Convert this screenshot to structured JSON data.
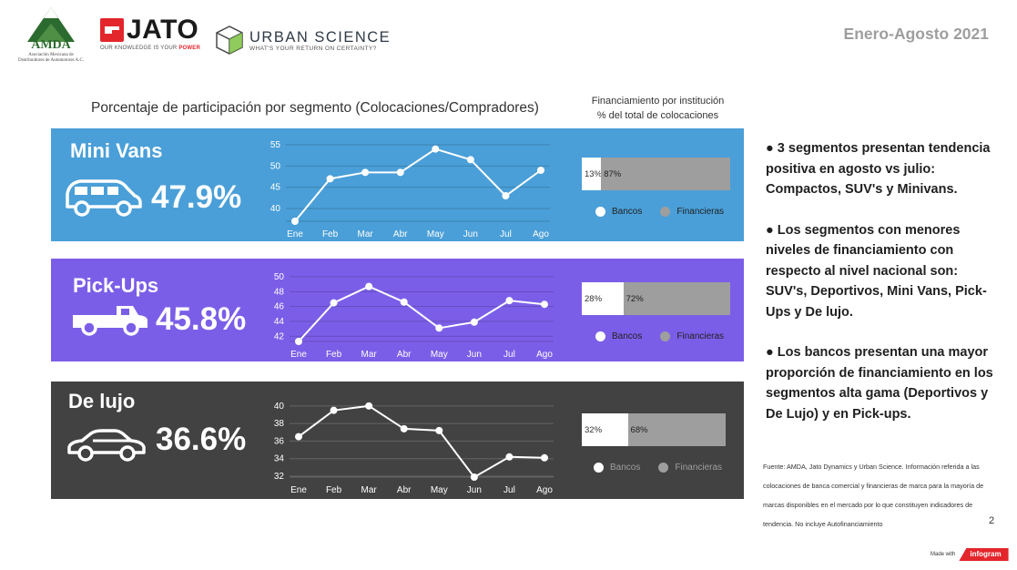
{
  "header": {
    "amda_name": "AMDA",
    "amda_subtitle_1": "Asociación Mexicana de",
    "amda_subtitle_2": "Distribuidores de Automotores A.C.",
    "jato_name": "JATO",
    "jato_tagline_prefix": "OUR KNOWLEDGE IS YOUR ",
    "jato_tagline_power": "POWER",
    "urban_science_name": "URBAN SCIENCE",
    "urban_science_tagline": "WHAT'S YOUR RETURN ON CERTAINTY?",
    "period": "Enero-Agosto  2021"
  },
  "titles": {
    "chart_title": "Porcentaje de participación por segmento (Colocaciones/Compradores)",
    "financing_title_1": "Financiamiento por institución",
    "financing_title_2": "% del total de colocaciones"
  },
  "colors": {
    "mini_vans_bg": "#4a9fd8",
    "pick_ups_bg": "#7b5ee8",
    "de_lujo_bg": "#424242",
    "banks": "#ffffff",
    "financieras": "#9e9e9e"
  },
  "segments": [
    {
      "name": "Mini Vans",
      "share": "47.9%",
      "icon": "minivan-icon",
      "banks_pct": "13%",
      "financieras_pct": "87%",
      "banks_value": 13,
      "financieras_value": 87
    },
    {
      "name": "Pick-Ups",
      "share": "45.8%",
      "icon": "pickup-truck-icon",
      "banks_pct": "28%",
      "financieras_pct": "72%",
      "banks_value": 28,
      "financieras_value": 72
    },
    {
      "name": "De lujo",
      "share": "36.6%",
      "icon": "luxury-car-icon",
      "banks_pct": "32%",
      "financieras_pct": "68%",
      "banks_value": 32,
      "financieras_value": 68
    }
  ],
  "legend": {
    "banks": "Bancos",
    "financieras": "Financieras"
  },
  "chart_data": [
    {
      "type": "line",
      "categories": [
        "Ene",
        "Feb",
        "Mar",
        "Abr",
        "May",
        "Jun",
        "Jul",
        "Ago"
      ],
      "values": [
        37.0,
        47.0,
        48.5,
        48.5,
        54.0,
        51.5,
        43.0,
        49.0
      ],
      "yticks": [
        40,
        45,
        50,
        55
      ],
      "ylim": [
        37,
        55
      ]
    },
    {
      "type": "line",
      "categories": [
        "Ene",
        "Feb",
        "Mar",
        "Abr",
        "May",
        "Jun",
        "Jul",
        "Ago"
      ],
      "values": [
        41.3,
        46.5,
        48.7,
        46.6,
        43.1,
        43.9,
        46.8,
        46.3
      ],
      "yticks": [
        42,
        44,
        46,
        48,
        50
      ],
      "ylim": [
        41.3,
        50
      ]
    },
    {
      "type": "line",
      "categories": [
        "Ene",
        "Feb",
        "Mar",
        "Abr",
        "May",
        "Jun",
        "Jul",
        "Ago"
      ],
      "values": [
        36.5,
        39.5,
        40.0,
        37.4,
        37.2,
        31.9,
        34.2,
        34.1
      ],
      "yticks": [
        32,
        34,
        36,
        38,
        40
      ],
      "ylim": [
        31.9,
        40.5
      ]
    }
  ],
  "bullets": [
    "● 3 segmentos presentan tendencia positiva en agosto vs julio: Compactos, SUV's y Minivans.",
    "● Los segmentos con menores niveles de financiamiento con respecto al nivel nacional son: SUV's, Deportivos, Mini Vans, Pick-Ups y De lujo.",
    "● Los bancos presentan una mayor proporción de financiamiento en los segmentos alta gama (Deportivos y De Lujo) y en Pick-ups."
  ],
  "source": "Fuente: AMDA, Jato Dynamics y Urban Science. Información referida a las colocaciones de banca comercial y financieras de marca para la mayoría de marcas disponibles en el mercado por lo que constituyen indicadores de tendencia. No incluye Autofinanciamiento",
  "page_number": "2",
  "footer": {
    "made_with": "Made with",
    "infogram": "infogram"
  }
}
